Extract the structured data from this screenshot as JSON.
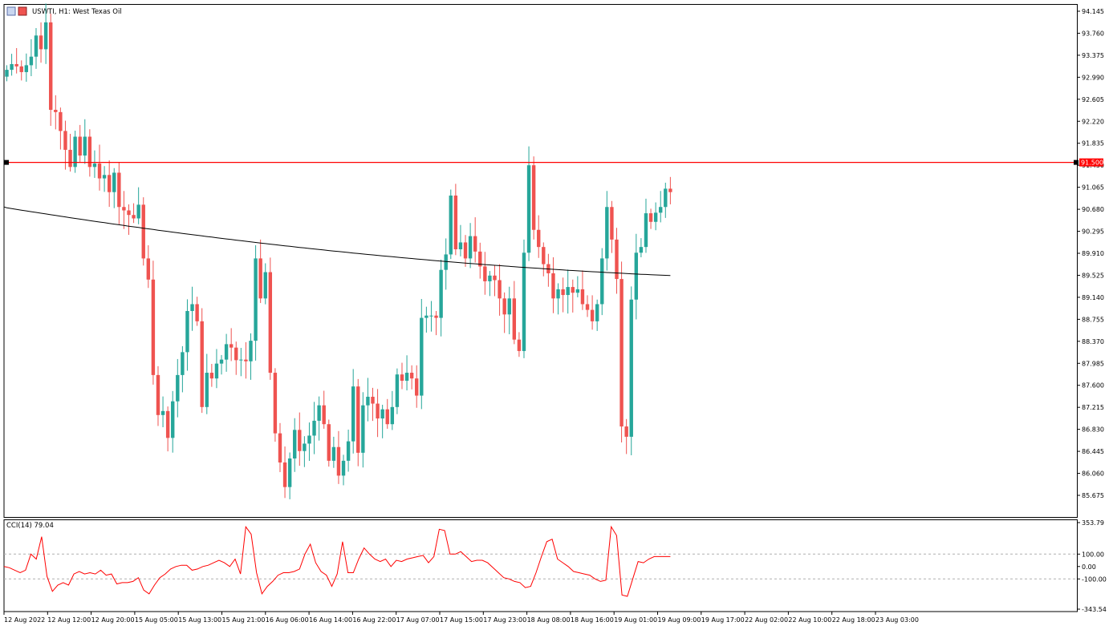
{
  "header": {
    "title": "USWTI, H1:  West Texas Oil"
  },
  "colors": {
    "bull": "#26a69a",
    "bear": "#ef5350",
    "level": "#ff0000",
    "ma": "#000000",
    "cci": "#ff0000"
  },
  "chart_data": [
    {
      "type": "candlestick",
      "title": "USWTI, H1:  West Texas Oil",
      "ylim": [
        85.5,
        94.2
      ],
      "y_ticks": [
        "94.145",
        "93.760",
        "93.375",
        "92.990",
        "92.605",
        "92.220",
        "91.835",
        "91.450",
        "91.065",
        "90.680",
        "90.295",
        "89.910",
        "89.525",
        "89.140",
        "88.755",
        "88.370",
        "87.985",
        "87.600",
        "87.215",
        "86.830",
        "86.445",
        "86.060",
        "85.675"
      ],
      "x_ticks": [
        "12 Aug 2022",
        "12 Aug 12:00",
        "12 Aug 20:00",
        "15 Aug 05:00",
        "15 Aug 13:00",
        "15 Aug 21:00",
        "16 Aug 06:00",
        "16 Aug 14:00",
        "16 Aug 22:00",
        "17 Aug 07:00",
        "17 Aug 15:00",
        "17 Aug 23:00",
        "18 Aug 08:00",
        "18 Aug 16:00",
        "19 Aug 01:00",
        "19 Aug 09:00",
        "19 Aug 17:00",
        "22 Aug 02:00",
        "22 Aug 10:00",
        "22 Aug 18:00",
        "23 Aug 03:00"
      ],
      "level": {
        "value": 91.5,
        "label": "91.500"
      },
      "closes": [
        93.12,
        93.22,
        93.18,
        93.08,
        93.2,
        93.35,
        93.72,
        93.48,
        93.95,
        92.42,
        92.38,
        92.05,
        91.72,
        91.42,
        91.95,
        91.62,
        91.95,
        91.42,
        91.48,
        91.22,
        91.28,
        90.98,
        91.32,
        90.72,
        90.66,
        90.58,
        90.52,
        90.76,
        89.82,
        89.45,
        87.78,
        87.08,
        87.15,
        86.68,
        87.32,
        87.78,
        88.18,
        88.9,
        89.02,
        88.72,
        87.22,
        87.82,
        87.72,
        87.98,
        88.05,
        88.32,
        88.26,
        88.04,
        88.05,
        88.02,
        88.38,
        89.82,
        89.12,
        89.58,
        87.82,
        86.76,
        86.25,
        85.82,
        86.32,
        86.82,
        86.45,
        86.58,
        86.72,
        86.98,
        87.25,
        86.92,
        86.28,
        86.52,
        86.02,
        86.28,
        86.62,
        87.58,
        86.42,
        87.25,
        87.4,
        87.28,
        87.02,
        87.18,
        86.92,
        87.22,
        87.79,
        87.68,
        87.82,
        87.72,
        87.42,
        88.78,
        88.82,
        88.82,
        88.78,
        89.62,
        89.89,
        90.92,
        89.98,
        90.1,
        89.82,
        90.21,
        89.94,
        89.68,
        89.42,
        89.52,
        89.44,
        89.12,
        88.84,
        89.12,
        88.4,
        88.2,
        89.92,
        91.45,
        90.32,
        90.02,
        89.72,
        89.56,
        89.12,
        89.28,
        89.18,
        89.32,
        89.22,
        89.28,
        89.02,
        88.92,
        88.72,
        89.02,
        89.82,
        90.72,
        90.15,
        89.46,
        86.88,
        86.7,
        89.1,
        89.92,
        90.02,
        90.61,
        90.46,
        90.62,
        90.72,
        91.04,
        90.98
      ],
      "moving_average": {
        "start": 90.72,
        "end": 89.52
      },
      "annotations": []
    },
    {
      "type": "line",
      "title": "CCI(14) 79.04",
      "series_name": "CCI(14)",
      "last_value": "79.04",
      "ylim": [
        -343.54,
        353.79
      ],
      "y_ticks": [
        "353.79",
        "100.00",
        "0.00",
        "-100.00",
        "-343.54"
      ],
      "levels": [
        100,
        -100
      ],
      "values": [
        0,
        -10,
        -30,
        -50,
        -30,
        100,
        60,
        240,
        -80,
        -200,
        -150,
        -130,
        -150,
        -60,
        -40,
        -60,
        -50,
        -60,
        -30,
        -70,
        -60,
        -140,
        -130,
        -130,
        -120,
        -90,
        -190,
        -220,
        -150,
        -90,
        -60,
        -20,
        0,
        10,
        10,
        -30,
        -20,
        0,
        10,
        30,
        50,
        30,
        0,
        60,
        -60,
        320,
        260,
        -50,
        -220,
        -160,
        -120,
        -70,
        -50,
        -50,
        -40,
        -20,
        100,
        180,
        30,
        -40,
        -70,
        -160,
        -60,
        200,
        -50,
        -50,
        60,
        150,
        100,
        60,
        40,
        60,
        0,
        50,
        40,
        60,
        70,
        80,
        90,
        30,
        80,
        300,
        290,
        100,
        100,
        120,
        80,
        40,
        50,
        50,
        30,
        -10,
        -50,
        -90,
        -100,
        -120,
        -130,
        -170,
        -160,
        -50,
        80,
        200,
        220,
        60,
        30,
        0,
        -40,
        -50,
        -60,
        -70,
        -100,
        -120,
        -110,
        320,
        250,
        -230,
        -240,
        -100,
        40,
        30,
        60,
        80,
        80,
        80,
        80
      ]
    }
  ]
}
